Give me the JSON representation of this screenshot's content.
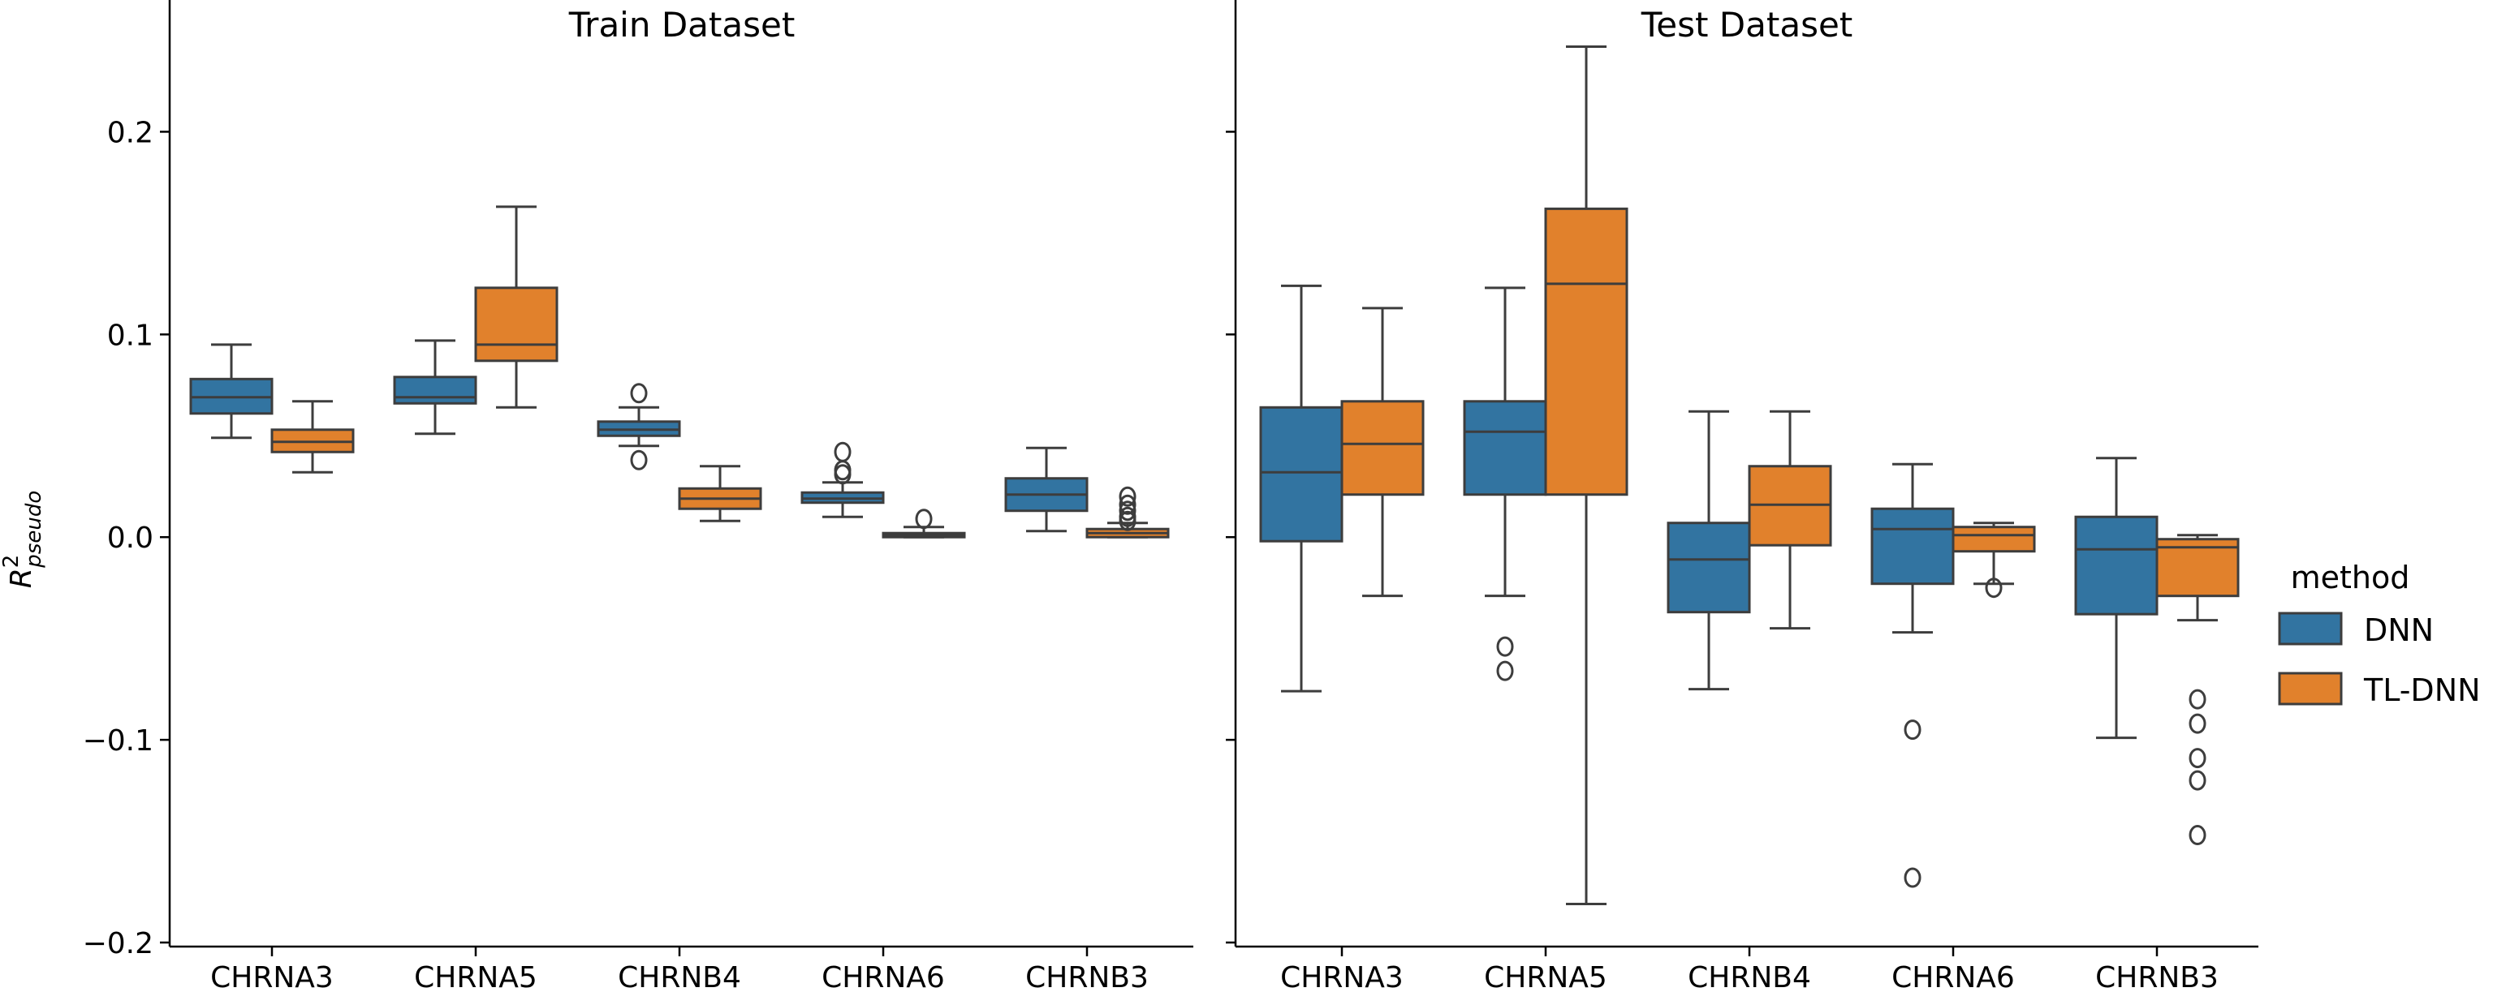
{
  "chart_data": [
    {
      "type": "box",
      "title": "Train Dataset",
      "ylabel": "R²_pseudo",
      "ylim": [
        -0.202,
        0.265
      ],
      "yticks": [
        -0.2,
        -0.1,
        0.0,
        0.1,
        0.2
      ],
      "ytick_labels": [
        "−0.2",
        "−0.1",
        "0.0",
        "0.1",
        "0.2"
      ],
      "categories": [
        "CHRNA3",
        "CHRNA5",
        "CHRNB4",
        "CHRNA6",
        "CHRNB3"
      ],
      "series": [
        {
          "name": "DNN",
          "boxes": [
            {
              "whislo": 0.049,
              "q1": 0.061,
              "med": 0.069,
              "q3": 0.078,
              "whishi": 0.095,
              "fliers": []
            },
            {
              "whislo": 0.051,
              "q1": 0.066,
              "med": 0.069,
              "q3": 0.079,
              "whishi": 0.097,
              "fliers": []
            },
            {
              "whislo": 0.045,
              "q1": 0.05,
              "med": 0.053,
              "q3": 0.057,
              "whishi": 0.064,
              "fliers": [
                0.071,
                0.038
              ]
            },
            {
              "whislo": 0.01,
              "q1": 0.017,
              "med": 0.019,
              "q3": 0.022,
              "whishi": 0.027,
              "fliers": [
                0.042,
                0.033,
                0.031
              ]
            },
            {
              "whislo": 0.003,
              "q1": 0.013,
              "med": 0.021,
              "q3": 0.029,
              "whishi": 0.044,
              "fliers": []
            }
          ]
        },
        {
          "name": "TL-DNN",
          "boxes": [
            {
              "whislo": 0.032,
              "q1": 0.042,
              "med": 0.047,
              "q3": 0.053,
              "whishi": 0.067,
              "fliers": []
            },
            {
              "whislo": 0.064,
              "q1": 0.087,
              "med": 0.095,
              "q3": 0.123,
              "whishi": 0.163,
              "fliers": []
            },
            {
              "whislo": 0.008,
              "q1": 0.014,
              "med": 0.019,
              "q3": 0.024,
              "whishi": 0.035,
              "fliers": []
            },
            {
              "whislo": 0.0,
              "q1": 0.0,
              "med": 0.001,
              "q3": 0.002,
              "whishi": 0.005,
              "fliers": [
                0.009
              ]
            },
            {
              "whislo": 0.0,
              "q1": 0.0,
              "med": 0.002,
              "q3": 0.004,
              "whishi": 0.007,
              "fliers": [
                0.02,
                0.016,
                0.013,
                0.01,
                0.008
              ]
            }
          ]
        }
      ]
    },
    {
      "type": "box",
      "title": "Test Dataset",
      "ylim": [
        -0.202,
        0.265
      ],
      "yticks": [
        -0.2,
        -0.1,
        0.0,
        0.1,
        0.2
      ],
      "categories": [
        "CHRNA3",
        "CHRNA5",
        "CHRNB4",
        "CHRNA6",
        "CHRNB3"
      ],
      "series": [
        {
          "name": "DNN",
          "boxes": [
            {
              "whislo": -0.076,
              "q1": -0.002,
              "med": 0.032,
              "q3": 0.064,
              "whishi": 0.124,
              "fliers": []
            },
            {
              "whislo": -0.029,
              "q1": 0.021,
              "med": 0.052,
              "q3": 0.067,
              "whishi": 0.123,
              "fliers": [
                -0.054,
                -0.066
              ]
            },
            {
              "whislo": -0.075,
              "q1": -0.037,
              "med": -0.011,
              "q3": 0.007,
              "whishi": 0.062,
              "fliers": []
            },
            {
              "whislo": -0.047,
              "q1": -0.023,
              "med": 0.004,
              "q3": 0.014,
              "whishi": 0.036,
              "fliers": [
                -0.095,
                -0.168
              ]
            },
            {
              "whislo": -0.099,
              "q1": -0.038,
              "med": -0.006,
              "q3": 0.01,
              "whishi": 0.039,
              "fliers": []
            }
          ]
        },
        {
          "name": "TL-DNN",
          "boxes": [
            {
              "whislo": -0.029,
              "q1": 0.021,
              "med": 0.046,
              "q3": 0.067,
              "whishi": 0.113,
              "fliers": []
            },
            {
              "whislo": -0.181,
              "q1": 0.021,
              "med": 0.125,
              "q3": 0.162,
              "whishi": 0.242,
              "fliers": []
            },
            {
              "whislo": -0.045,
              "q1": -0.004,
              "med": 0.016,
              "q3": 0.035,
              "whishi": 0.062,
              "fliers": []
            },
            {
              "whislo": -0.023,
              "q1": -0.007,
              "med": 0.001,
              "q3": 0.005,
              "whishi": 0.007,
              "fliers": [
                -0.025
              ]
            },
            {
              "whislo": -0.041,
              "q1": -0.029,
              "med": -0.005,
              "q3": -0.001,
              "whishi": 0.001,
              "fliers": [
                -0.08,
                -0.092,
                -0.109,
                -0.12,
                -0.147
              ]
            }
          ]
        }
      ]
    }
  ],
  "legend": {
    "title": "method",
    "placement": "right",
    "entries": [
      {
        "label": "DNN",
        "color": "#3274a1"
      },
      {
        "label": "TL-DNN",
        "color": "#e1812c"
      }
    ]
  }
}
